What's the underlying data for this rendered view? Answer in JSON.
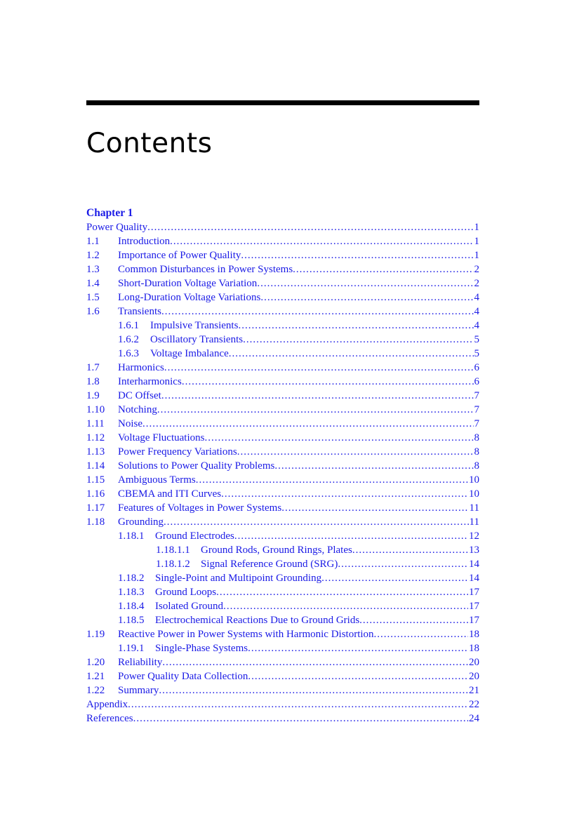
{
  "heading": "Contents",
  "chapter_label": "Chapter 1",
  "colors": {
    "link": "#1a1ae6",
    "rule": "#000000"
  },
  "entries": [
    {
      "level": 0,
      "number": "",
      "title": "Power Quality",
      "page": "1"
    },
    {
      "level": 1,
      "number": "1.1",
      "title": "Introduction",
      "page": "1"
    },
    {
      "level": 1,
      "number": "1.2",
      "title": "Importance of Power Quality",
      "page": "1"
    },
    {
      "level": 1,
      "number": "1.3",
      "title": "Common Disturbances in Power Systems",
      "page": "2"
    },
    {
      "level": 1,
      "number": "1.4",
      "title": "Short-Duration Voltage Variation",
      "page": "2"
    },
    {
      "level": 1,
      "number": "1.5",
      "title": "Long-Duration Voltage Variations",
      "page": "4"
    },
    {
      "level": 1,
      "number": "1.6",
      "title": "Transients",
      "page": "4"
    },
    {
      "level": 2,
      "number": "1.6.1",
      "title": "Impulsive Transients",
      "page": "4"
    },
    {
      "level": 2,
      "number": "1.6.2",
      "title": "Oscillatory Transients",
      "page": "5"
    },
    {
      "level": 2,
      "number": "1.6.3",
      "title": "Voltage Imbalance",
      "page": "5"
    },
    {
      "level": 1,
      "number": "1.7",
      "title": "Harmonics",
      "page": "6"
    },
    {
      "level": 1,
      "number": "1.8",
      "title": "Interharmonics",
      "page": "6"
    },
    {
      "level": 1,
      "number": "1.9",
      "title": "DC Offset",
      "page": "7"
    },
    {
      "level": 1,
      "number": "1.10",
      "title": "Notching",
      "page": "7"
    },
    {
      "level": 1,
      "number": "1.11",
      "title": "Noise",
      "page": "7"
    },
    {
      "level": 1,
      "number": "1.12",
      "title": "Voltage Fluctuations",
      "page": "8"
    },
    {
      "level": 1,
      "number": "1.13",
      "title": "Power Frequency Variations",
      "page": "8"
    },
    {
      "level": 1,
      "number": "1.14",
      "title": "Solutions to Power Quality Problems",
      "page": "8"
    },
    {
      "level": 1,
      "number": "1.15",
      "title": "Ambiguous Terms",
      "page": "10"
    },
    {
      "level": 1,
      "number": "1.16",
      "title": "CBEMA and ITI Curves",
      "page": "10"
    },
    {
      "level": 1,
      "number": "1.17",
      "title": "Features of Voltages in Power Systems",
      "page": "11"
    },
    {
      "level": 1,
      "number": "1.18",
      "title": "Grounding",
      "page": "11"
    },
    {
      "level": 2,
      "number": "1.18.1",
      "title": "Ground Electrodes",
      "page": "12"
    },
    {
      "level": 3,
      "number": "1.18.1.1",
      "title": "Ground Rods, Ground Rings, Plates",
      "page": "13"
    },
    {
      "level": 3,
      "number": "1.18.1.2",
      "title": "Signal Reference Ground (SRG)",
      "page": "14"
    },
    {
      "level": 2,
      "number": "1.18.2",
      "title": "Single-Point and Multipoint Grounding",
      "page": "14"
    },
    {
      "level": 2,
      "number": "1.18.3",
      "title": "Ground Loops",
      "page": "17"
    },
    {
      "level": 2,
      "number": "1.18.4",
      "title": "Isolated Ground",
      "page": "17"
    },
    {
      "level": 2,
      "number": "1.18.5",
      "title": "Electrochemical Reactions Due to Ground Grids",
      "page": "17"
    },
    {
      "level": 1,
      "number": "1.19",
      "title": "Reactive Power in Power Systems with Harmonic Distortion",
      "page": "18"
    },
    {
      "level": 2,
      "number": "1.19.1",
      "title": "Single-Phase Systems",
      "page": "18"
    },
    {
      "level": 1,
      "number": "1.20",
      "title": "Reliability",
      "page": "20"
    },
    {
      "level": 1,
      "number": "1.21",
      "title": "Power Quality Data Collection",
      "page": "20"
    },
    {
      "level": 1,
      "number": "1.22",
      "title": "Summary",
      "page": "21"
    },
    {
      "level": 0,
      "number": "",
      "title": "Appendix",
      "page": "22"
    },
    {
      "level": 0,
      "number": "",
      "title": "References",
      "page": "24"
    }
  ]
}
